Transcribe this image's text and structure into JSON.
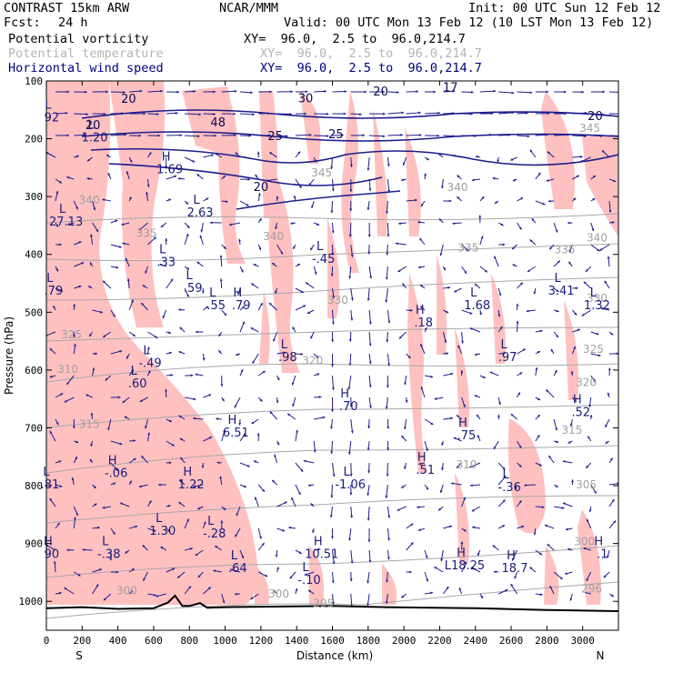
{
  "header": {
    "model": "CONTRAST 15km ARW",
    "org": "NCAR/MMM",
    "init": "Init: 00 UTC Sun 12 Feb 12",
    "fcst_label": "Fcst:",
    "fcst_value": "24 h",
    "valid": "Valid: 00 UTC Mon 13 Feb 12 (10 LST Mon 13 Feb 12)",
    "fields": [
      {
        "name": "Potential vorticity",
        "xy": "XY=  96.0,  2.5 to  96.0,214.7",
        "color": "#000000"
      },
      {
        "name": "Potential temperature",
        "xy": "XY=  96.0,  2.5 to  96.0,214.7",
        "color": "#b4b4b4"
      },
      {
        "name": "Horizontal wind speed",
        "xy": "XY=  96.0,  2.5 to  96.0,214.7",
        "color": "#000080"
      }
    ]
  },
  "colors": {
    "pv_fill": "#ffc0c0",
    "theta": "#a8a8a8",
    "wind": "#1c1c8c",
    "terrain": "#000000"
  },
  "chart_data": {
    "type": "cross-section",
    "xlabel": "Distance (km)",
    "ylabel": "Pressure (hPa)",
    "xlim": [
      0,
      3200
    ],
    "ylim": [
      1050,
      100
    ],
    "xticks": [
      "0",
      "200",
      "400",
      "600",
      "800",
      "1000",
      "1200",
      "1400",
      "1600",
      "1800",
      "2000",
      "2200",
      "2400",
      "2600",
      "2800",
      "3000"
    ],
    "yticks": [
      "100",
      "200",
      "300",
      "400",
      "500",
      "600",
      "700",
      "800",
      "900",
      "1000"
    ],
    "x_ends": {
      "left": "S",
      "right": "N"
    },
    "theta_contours": [
      {
        "label": "345",
        "x": 1540,
        "p": 265
      },
      {
        "label": "345",
        "x": 3040,
        "p": 188
      },
      {
        "label": "340",
        "x": 240,
        "p": 312
      },
      {
        "label": "340",
        "x": 1270,
        "p": 375
      },
      {
        "label": "340",
        "x": 2300,
        "p": 290
      },
      {
        "label": "340",
        "x": 3080,
        "p": 378
      },
      {
        "label": "335",
        "x": 560,
        "p": 370
      },
      {
        "label": "335",
        "x": 2360,
        "p": 395
      },
      {
        "label": "335",
        "x": 2900,
        "p": 398
      },
      {
        "label": "330",
        "x": 1630,
        "p": 485
      },
      {
        "label": "330",
        "x": 3080,
        "p": 482
      },
      {
        "label": "325",
        "x": 140,
        "p": 545
      },
      {
        "label": "325",
        "x": 3060,
        "p": 570
      },
      {
        "label": "320",
        "x": 1490,
        "p": 590
      },
      {
        "label": "320",
        "x": 3020,
        "p": 628
      },
      {
        "label": "315",
        "x": 240,
        "p": 700
      },
      {
        "label": "315",
        "x": 2940,
        "p": 710
      },
      {
        "label": "310",
        "x": 120,
        "p": 605
      },
      {
        "label": "310",
        "x": 2350,
        "p": 770
      },
      {
        "label": "305",
        "x": 3020,
        "p": 805
      },
      {
        "label": "300",
        "x": 3010,
        "p": 903
      },
      {
        "label": "300",
        "x": 450,
        "p": 988
      },
      {
        "label": "300",
        "x": 1300,
        "p": 993
      },
      {
        "label": "296",
        "x": 3050,
        "p": 985
      },
      {
        "label": "295",
        "x": 1550,
        "p": 1010
      }
    ],
    "wind_contours": [
      {
        "label": "20",
        "x": 460,
        "p": 138
      },
      {
        "label": "30",
        "x": 1450,
        "p": 137
      },
      {
        "label": "20",
        "x": 260,
        "p": 183
      },
      {
        "label": "48",
        "x": 960,
        "p": 179
      },
      {
        "label": "25",
        "x": 1280,
        "p": 202
      },
      {
        "label": "25",
        "x": 1620,
        "p": 199
      },
      {
        "label": "20",
        "x": 1200,
        "p": 290
      },
      {
        "label": "20",
        "x": 1870,
        "p": 125
      },
      {
        "label": "17",
        "x": 2260,
        "p": 118
      },
      {
        "label": "20",
        "x": 3070,
        "p": 168
      }
    ],
    "pv_extrema": [
      {
        "type": "L",
        "value": "92",
        "x": 30,
        "p": 165
      },
      {
        "type": "L",
        "value": "1.20",
        "x": 270,
        "p": 200
      },
      {
        "type": "H",
        "value": "1.69",
        "x": 690,
        "p": 255
      },
      {
        "type": "L",
        "value": "2.63",
        "x": 860,
        "p": 330
      },
      {
        "type": "L",
        "value": "27.13",
        "x": 110,
        "p": 345
      },
      {
        "type": "L",
        "value": ".33",
        "x": 670,
        "p": 415
      },
      {
        "type": "L",
        "value": "-.45",
        "x": 1550,
        "p": 410
      },
      {
        "type": "L",
        "value": ".59",
        "x": 820,
        "p": 460
      },
      {
        "type": "L",
        "value": ".55",
        "x": 950,
        "p": 490
      },
      {
        "type": "H",
        "value": ".79",
        "x": 1090,
        "p": 490
      },
      {
        "type": "L",
        "value": ".79",
        "x": 40,
        "p": 465
      },
      {
        "type": "H",
        "value": ".18",
        "x": 2110,
        "p": 520
      },
      {
        "type": "L",
        "value": "1.68",
        "x": 2410,
        "p": 490
      },
      {
        "type": "L",
        "value": "3.41",
        "x": 2880,
        "p": 465
      },
      {
        "type": "L",
        "value": "1.32",
        "x": 3080,
        "p": 490
      },
      {
        "type": "L",
        "value": "-.49",
        "x": 580,
        "p": 590
      },
      {
        "type": "L",
        "value": ".98",
        "x": 1350,
        "p": 580
      },
      {
        "type": "L",
        "value": ".97",
        "x": 2580,
        "p": 580
      },
      {
        "type": "L",
        "value": ".60",
        "x": 510,
        "p": 625
      },
      {
        "type": "H",
        "value": "6.51",
        "x": 1060,
        "p": 710
      },
      {
        "type": "H",
        "value": ".70",
        "x": 1690,
        "p": 665
      },
      {
        "type": "H",
        "value": ".75",
        "x": 2350,
        "p": 715
      },
      {
        "type": "H",
        "value": ".52",
        "x": 2990,
        "p": 675
      },
      {
        "type": "H",
        "value": "-.06",
        "x": 390,
        "p": 780
      },
      {
        "type": "H",
        "value": ".51",
        "x": 2120,
        "p": 775
      },
      {
        "type": "L",
        "value": "-1.06",
        "x": 1700,
        "p": 800
      },
      {
        "type": "L",
        "value": "-.36",
        "x": 2590,
        "p": 805
      },
      {
        "type": "H",
        "value": "1.22",
        "x": 810,
        "p": 800
      },
      {
        "type": "L",
        "value": ".81",
        "x": 20,
        "p": 800
      },
      {
        "type": "L",
        "value": "1.30",
        "x": 650,
        "p": 880
      },
      {
        "type": "L",
        "value": "-.28",
        "x": 940,
        "p": 885
      },
      {
        "type": "L",
        "value": "-.38",
        "x": 350,
        "p": 920
      },
      {
        "type": "H",
        "value": "90",
        "x": 30,
        "p": 920
      },
      {
        "type": "H",
        "value": "10.51",
        "x": 1540,
        "p": 920
      },
      {
        "type": "H",
        "value": "L18.25",
        "x": 2340,
        "p": 940
      },
      {
        "type": "H",
        "value": "18.7",
        "x": 2620,
        "p": 945
      },
      {
        "type": "L",
        "value": ".64",
        "x": 1070,
        "p": 945
      },
      {
        "type": "L",
        "value": "-.10",
        "x": 1470,
        "p": 965
      },
      {
        "type": "H",
        "value": ".1",
        "x": 3110,
        "p": 920
      }
    ],
    "terrain_km": [
      0,
      200,
      400,
      600,
      680,
      720,
      760,
      800,
      860,
      900,
      1000,
      1600,
      1900,
      2400,
      2800,
      3200
    ],
    "terrain_p": [
      1012,
      1010,
      1013,
      1012,
      1002,
      990,
      1008,
      1008,
      1003,
      1011,
      1010,
      1008,
      1010,
      1012,
      1015,
      1017
    ]
  }
}
